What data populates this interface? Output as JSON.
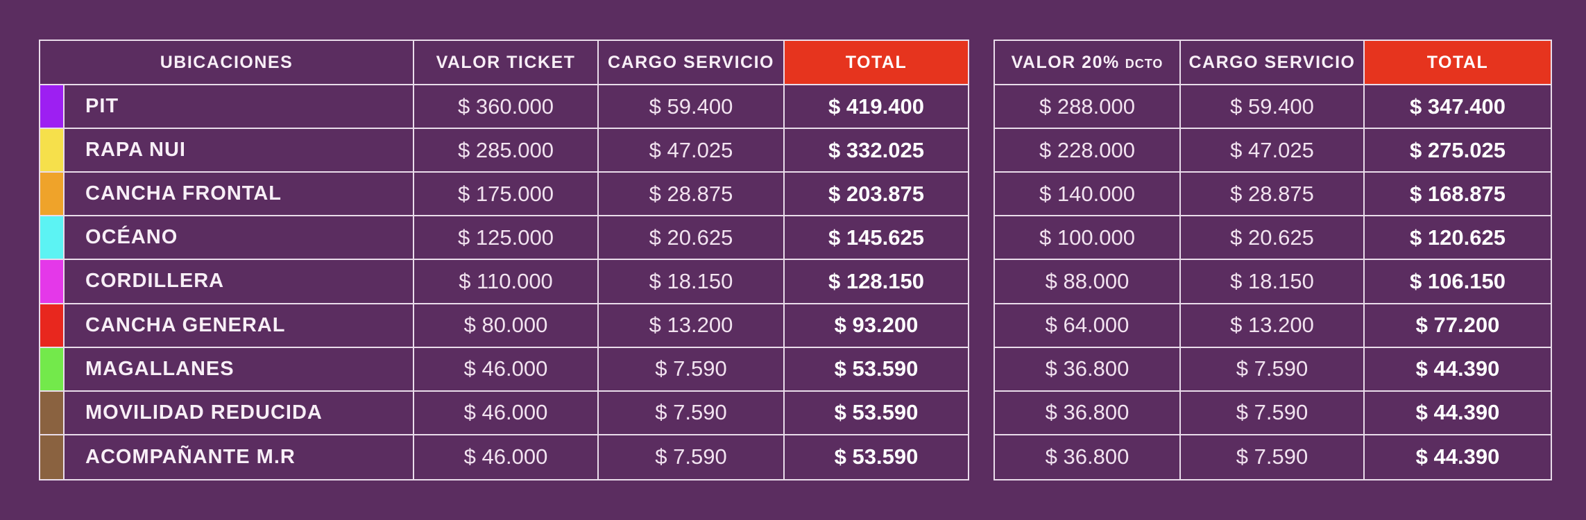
{
  "page": {
    "background": "#5b2d60",
    "line_color": "#eaddeb",
    "accent_red": "#e6341e",
    "currency_symbol": "$"
  },
  "left_table": {
    "headers": {
      "ubicaciones": "UBICACIONES",
      "valor": "VALOR TICKET",
      "cargo": "CARGO SERVICIO",
      "total": "TOTAL"
    },
    "rows": [
      {
        "label": "PIT",
        "swatch": "#9d1ff2",
        "valor": "$ 360.000",
        "cargo": "$ 59.400",
        "total": "$ 419.400"
      },
      {
        "label": "RAPA NUI",
        "swatch": "#f6e04b",
        "valor": "$ 285.000",
        "cargo": "$ 47.025",
        "total": "$ 332.025"
      },
      {
        "label": "CANCHA FRONTAL",
        "swatch": "#efa32a",
        "valor": "$ 175.000",
        "cargo": "$ 28.875",
        "total": "$ 203.875"
      },
      {
        "label": "OCÉANO",
        "swatch": "#5cf3f3",
        "valor": "$ 125.000",
        "cargo": "$ 20.625",
        "total": "$ 145.625"
      },
      {
        "label": "CORDILLERA",
        "swatch": "#e438e9",
        "valor": "$ 110.000",
        "cargo": "$ 18.150",
        "total": "$ 128.150"
      },
      {
        "label": "CANCHA GENERAL",
        "swatch": "#e8271e",
        "valor": "$ 80.000",
        "cargo": "$ 13.200",
        "total": "$ 93.200"
      },
      {
        "label": "MAGALLANES",
        "swatch": "#73e94b",
        "valor": "$ 46.000",
        "cargo": "$ 7.590",
        "total": "$ 53.590"
      },
      {
        "label": "MOVILIDAD REDUCIDA",
        "swatch": "#8a6240",
        "valor": "$ 46.000",
        "cargo": "$ 7.590",
        "total": "$ 53.590"
      },
      {
        "label": "ACOMPAÑANTE M.R",
        "swatch": "#8a6240",
        "valor": "$ 46.000",
        "cargo": "$ 7.590",
        "total": "$ 53.590"
      }
    ]
  },
  "right_table": {
    "headers": {
      "valor_main": "VALOR 20%",
      "valor_small": "DCTO",
      "cargo": "CARGO SERVICIO",
      "total": "TOTAL"
    },
    "rows": [
      {
        "valor": "$ 288.000",
        "cargo": "$ 59.400",
        "total": "$ 347.400"
      },
      {
        "valor": "$ 228.000",
        "cargo": "$ 47.025",
        "total": "$ 275.025"
      },
      {
        "valor": "$ 140.000",
        "cargo": "$ 28.875",
        "total": "$ 168.875"
      },
      {
        "valor": "$ 100.000",
        "cargo": "$ 20.625",
        "total": "$ 120.625"
      },
      {
        "valor": "$ 88.000",
        "cargo": "$ 18.150",
        "total": "$ 106.150"
      },
      {
        "valor": "$ 64.000",
        "cargo": "$ 13.200",
        "total": "$ 77.200"
      },
      {
        "valor": "$ 36.800",
        "cargo": "$ 7.590",
        "total": "$ 44.390"
      },
      {
        "valor": "$ 36.800",
        "cargo": "$ 7.590",
        "total": "$ 44.390"
      },
      {
        "valor": "$ 36.800",
        "cargo": "$ 7.590",
        "total": "$ 44.390"
      }
    ]
  },
  "chart_data": [
    {
      "type": "table",
      "columns": [
        "UBICACIONES",
        "VALOR TICKET",
        "CARGO SERVICIO",
        "TOTAL"
      ],
      "rows": [
        [
          "PIT",
          360000,
          59400,
          419400
        ],
        [
          "RAPA NUI",
          285000,
          47025,
          332025
        ],
        [
          "CANCHA FRONTAL",
          175000,
          28875,
          203875
        ],
        [
          "OCÉANO",
          125000,
          20625,
          145625
        ],
        [
          "CORDILLERA",
          110000,
          18150,
          128150
        ],
        [
          "CANCHA GENERAL",
          80000,
          13200,
          93200
        ],
        [
          "MAGALLANES",
          46000,
          7590,
          53590
        ],
        [
          "MOVILIDAD REDUCIDA",
          46000,
          7590,
          53590
        ],
        [
          "ACOMPAÑANTE M.R",
          46000,
          7590,
          53590
        ]
      ],
      "row_colors": [
        "#9d1ff2",
        "#f6e04b",
        "#efa32a",
        "#5cf3f3",
        "#e438e9",
        "#e8271e",
        "#73e94b",
        "#8a6240",
        "#8a6240"
      ]
    },
    {
      "type": "table",
      "columns": [
        "VALOR 20% DCTO",
        "CARGO SERVICIO",
        "TOTAL"
      ],
      "rows": [
        [
          288000,
          59400,
          347400
        ],
        [
          228000,
          47025,
          275025
        ],
        [
          140000,
          28875,
          168875
        ],
        [
          100000,
          20625,
          120625
        ],
        [
          88000,
          18150,
          106150
        ],
        [
          64000,
          13200,
          77200
        ],
        [
          36800,
          7590,
          44390
        ],
        [
          36800,
          7590,
          44390
        ],
        [
          36800,
          7590,
          44390
        ]
      ]
    }
  ]
}
